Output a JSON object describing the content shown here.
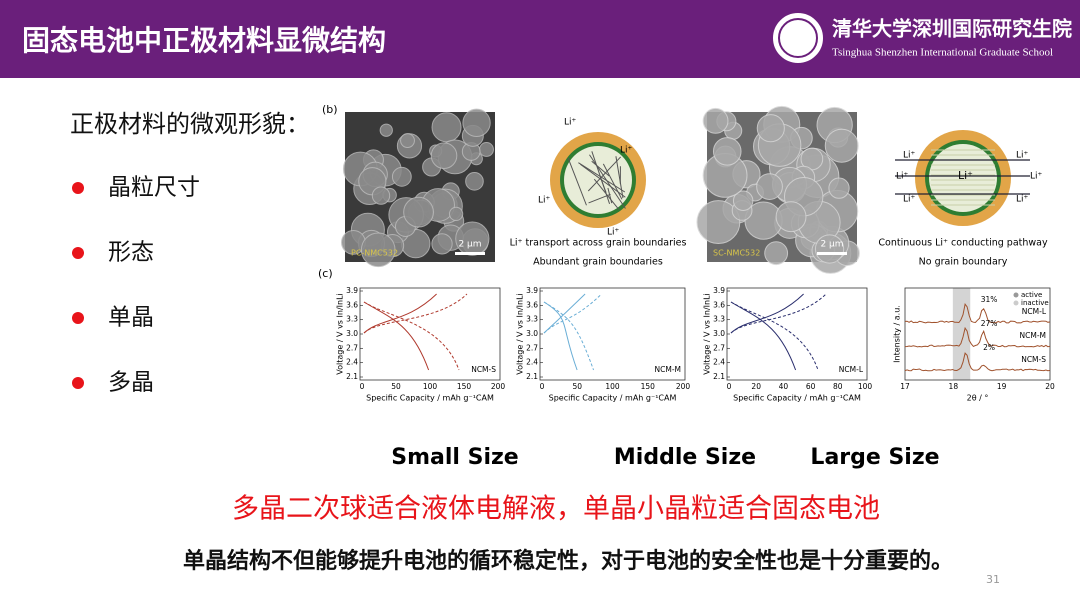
{
  "header": {
    "title": "固态电池中正极材料显微结构",
    "school_cn": "清华大学深圳国际研究生院",
    "school_en": "Tsinghua Shenzhen International Graduate School"
  },
  "intro": "正极材料的微观形貌：",
  "bullets": [
    "晶粒尺寸",
    "形态",
    "单晶",
    "多晶"
  ],
  "figure": {
    "panel_b": "(b)",
    "panel_c": "(c)",
    "sem": [
      {
        "scale": "2 μm",
        "label": "PC-NMC532"
      },
      {
        "scale": "2 μm",
        "label": "SC-NMC532"
      }
    ],
    "schematic_a": {
      "li": [
        "Li⁺",
        "Li⁺",
        "Li⁺",
        "Li⁺"
      ],
      "caption": [
        "Li⁺ transport across grain boundaries",
        "Abundant grain boundaries"
      ]
    },
    "schematic_b": {
      "li": [
        "Li⁺",
        "Li⁺",
        "Li⁺",
        "Li⁺",
        "Li⁺",
        "Li⁺",
        "Li⁺"
      ],
      "caption": [
        "Continuous Li⁺ conducting pathway",
        "No grain boundary"
      ]
    },
    "voltage": [
      {
        "ylabel": "Voltage / V vs In/InLi",
        "xlabel": "Specific Capacity / mAh g⁻¹CAM",
        "yticks": [
          "3.9",
          "3.6",
          "3.3",
          "3.0",
          "2.7",
          "2.4",
          "2.1"
        ],
        "xticks": [
          "0",
          "50",
          "100",
          "150",
          "200"
        ],
        "tag": "NCM-S"
      },
      {
        "ylabel": "Voltage / V vs In/InLi",
        "xlabel": "Specific Capacity / mAh g⁻¹CAM",
        "yticks": [
          "3.9",
          "3.6",
          "3.3",
          "3.0",
          "2.7",
          "2.4",
          "2.1"
        ],
        "xticks": [
          "0",
          "50",
          "100",
          "150",
          "200"
        ],
        "tag": "NCM-M"
      },
      {
        "ylabel": "Voltage / V vs In/InLi",
        "xlabel": "Specific Capacity / mAh g⁻¹CAM",
        "yticks": [
          "3.9",
          "3.6",
          "3.3",
          "3.0",
          "2.7",
          "2.4",
          "2.1"
        ],
        "xticks": [
          "0",
          "20",
          "40",
          "60",
          "80",
          "100"
        ],
        "tag": "NCM-L"
      }
    ],
    "xrd": {
      "ylabel": "Intensity / a.u.",
      "xlabel": "2θ / °",
      "xticks": [
        "17",
        "18",
        "19",
        "20"
      ],
      "tags": [
        "NCM-L",
        "NCM-M",
        "NCM-S"
      ],
      "percents": [
        "31%",
        "27%",
        "2%"
      ],
      "legend": [
        "active",
        "inactive"
      ]
    }
  },
  "sizes": [
    "Small  Size",
    "Middle  Size",
    "Large Size"
  ],
  "conclusion_red": "多晶二次球适合液体电解液，单晶小晶粒适合固态电池",
  "conclusion_black": "单晶结构不但能够提升电池的循环稳定性，对于电池的安全性也是十分重要的。",
  "page_number": "31"
}
